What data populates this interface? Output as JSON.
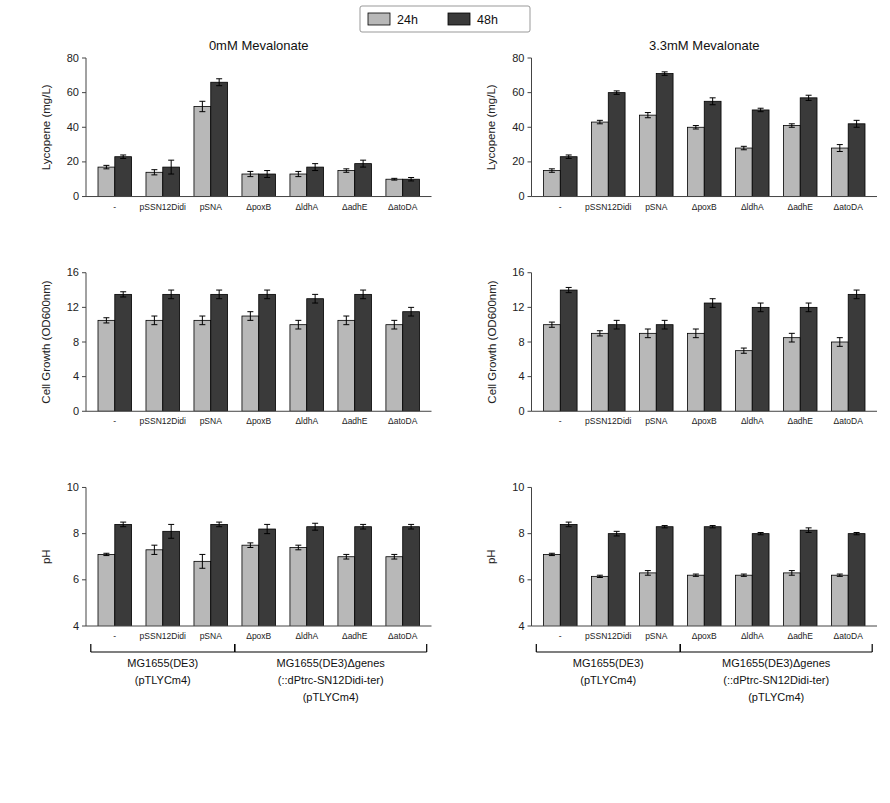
{
  "chart_data": [
    {
      "type": "bar",
      "title": "0mM Mevalonate",
      "y_label": "Lycopene (mg/L)",
      "categories": [
        "-",
        "pSSN12Didi",
        "pSNA",
        "ΔpoxB",
        "ΔldhA",
        "ΔadhE",
        "ΔatoDA"
      ],
      "series": [
        {
          "name": "24h",
          "color": "#b8b8b8",
          "values": [
            17,
            14,
            52,
            13,
            13,
            15,
            10
          ],
          "errors": [
            1.0,
            1.5,
            3.0,
            1.5,
            1.5,
            1.0,
            0.5
          ]
        },
        {
          "name": "48h",
          "color": "#3a3a3a",
          "values": [
            23,
            17,
            66,
            13,
            17,
            19,
            10
          ],
          "errors": [
            1.0,
            4.0,
            2.0,
            2.0,
            2.0,
            2.0,
            1.0
          ]
        }
      ],
      "ylim": [
        0,
        80
      ],
      "yticks": [
        0,
        20,
        40,
        60,
        80
      ],
      "grid": false,
      "legend": "top"
    },
    {
      "type": "bar",
      "title": "3.3mM Mevalonate",
      "y_label": "Lycopene (mg/L)",
      "categories": [
        "-",
        "pSSN12Didi",
        "pSNA",
        "ΔpoxB",
        "ΔldhA",
        "ΔadhE",
        "ΔatoDA"
      ],
      "series": [
        {
          "name": "24h",
          "color": "#b8b8b8",
          "values": [
            15,
            43,
            47,
            40,
            28,
            41,
            28
          ],
          "errors": [
            1.0,
            1.0,
            1.5,
            1.0,
            1.0,
            1.0,
            2.0
          ]
        },
        {
          "name": "48h",
          "color": "#3a3a3a",
          "values": [
            23,
            60,
            71,
            55,
            50,
            57,
            42
          ],
          "errors": [
            1.0,
            1.0,
            1.0,
            2.0,
            1.0,
            1.5,
            2.0
          ]
        }
      ],
      "ylim": [
        0,
        80
      ],
      "yticks": [
        0,
        20,
        40,
        60,
        80
      ],
      "grid": false
    },
    {
      "type": "bar",
      "y_label": "Cell Growth (OD600nm)",
      "categories": [
        "-",
        "pSSN12Didi",
        "pSNA",
        "ΔpoxB",
        "ΔldhA",
        "ΔadhE",
        "ΔatoDA"
      ],
      "series": [
        {
          "name": "24h",
          "color": "#b8b8b8",
          "values": [
            10.5,
            10.5,
            10.5,
            11.0,
            10.0,
            10.5,
            10.0
          ],
          "errors": [
            0.3,
            0.5,
            0.5,
            0.5,
            0.5,
            0.5,
            0.5
          ]
        },
        {
          "name": "48h",
          "color": "#3a3a3a",
          "values": [
            13.5,
            13.5,
            13.5,
            13.5,
            13.0,
            13.5,
            11.5
          ],
          "errors": [
            0.3,
            0.5,
            0.5,
            0.5,
            0.5,
            0.5,
            0.5
          ]
        }
      ],
      "ylim": [
        0,
        16
      ],
      "yticks": [
        0,
        4,
        8,
        12,
        16
      ],
      "grid": false
    },
    {
      "type": "bar",
      "y_label": "Cell Growth (OD600nm)",
      "categories": [
        "-",
        "pSSN12Didi",
        "pSNA",
        "ΔpoxB",
        "ΔldhA",
        "ΔadhE",
        "ΔatoDA"
      ],
      "series": [
        {
          "name": "24h",
          "color": "#b8b8b8",
          "values": [
            10.0,
            9.0,
            9.0,
            9.0,
            7.0,
            8.5,
            8.0
          ],
          "errors": [
            0.3,
            0.3,
            0.5,
            0.5,
            0.3,
            0.5,
            0.5
          ]
        },
        {
          "name": "48h",
          "color": "#3a3a3a",
          "values": [
            14.0,
            10.0,
            10.0,
            12.5,
            12.0,
            12.0,
            13.5
          ],
          "errors": [
            0.3,
            0.5,
            0.5,
            0.5,
            0.5,
            0.5,
            0.5
          ]
        }
      ],
      "ylim": [
        0,
        16
      ],
      "yticks": [
        0,
        4,
        8,
        12,
        16
      ],
      "grid": false
    },
    {
      "type": "bar",
      "y_label": "pH",
      "categories": [
        "-",
        "pSSN12Didi",
        "pSNA",
        "ΔpoxB",
        "ΔldhA",
        "ΔadhE",
        "ΔatoDA"
      ],
      "series": [
        {
          "name": "24h",
          "color": "#b8b8b8",
          "values": [
            7.1,
            7.3,
            6.8,
            7.5,
            7.4,
            7.0,
            7.0
          ],
          "errors": [
            0.05,
            0.2,
            0.3,
            0.1,
            0.1,
            0.1,
            0.1
          ]
        },
        {
          "name": "48h",
          "color": "#3a3a3a",
          "values": [
            8.4,
            8.1,
            8.4,
            8.2,
            8.3,
            8.3,
            8.3
          ],
          "errors": [
            0.1,
            0.3,
            0.1,
            0.2,
            0.15,
            0.1,
            0.1
          ]
        }
      ],
      "ylim": [
        4,
        10
      ],
      "yticks": [
        4,
        6,
        8,
        10
      ],
      "grid": false,
      "annotations": [
        {
          "text": [
            "MG1655(DE3)",
            "(pTLYCm4)"
          ],
          "categories": [
            "-",
            "pSSN12Didi",
            "pSNA"
          ]
        },
        {
          "text": [
            "MG1655(DE3)Δgenes",
            "(::dPtrc-SN12Didi-ter)",
            "(pTLYCm4)"
          ],
          "categories": [
            "ΔpoxB",
            "ΔldhA",
            "ΔadhE",
            "ΔatoDA"
          ]
        }
      ]
    },
    {
      "type": "bar",
      "y_label": "pH",
      "categories": [
        "-",
        "pSSN12Didi",
        "pSNA",
        "ΔpoxB",
        "ΔldhA",
        "ΔadhE",
        "ΔatoDA"
      ],
      "series": [
        {
          "name": "24h",
          "color": "#b8b8b8",
          "values": [
            7.1,
            6.15,
            6.3,
            6.2,
            6.2,
            6.3,
            6.2
          ],
          "errors": [
            0.05,
            0.05,
            0.1,
            0.05,
            0.05,
            0.1,
            0.05
          ]
        },
        {
          "name": "48h",
          "color": "#3a3a3a",
          "values": [
            8.4,
            8.0,
            8.3,
            8.3,
            8.0,
            8.15,
            8.0
          ],
          "errors": [
            0.1,
            0.1,
            0.05,
            0.05,
            0.05,
            0.1,
            0.05
          ]
        }
      ],
      "ylim": [
        4,
        10
      ],
      "yticks": [
        4,
        6,
        8,
        10
      ],
      "grid": false,
      "annotations": [
        {
          "text": [
            "MG1655(DE3)",
            "(pTLYCm4)"
          ],
          "categories": [
            "-",
            "pSSN12Didi",
            "pSNA"
          ]
        },
        {
          "text": [
            "MG1655(DE3)Δgenes",
            "(::dPtrc-SN12Didi-ter)",
            "(pTLYCm4)"
          ],
          "categories": [
            "ΔpoxB",
            "ΔldhA",
            "ΔadhE",
            "ΔatoDA"
          ]
        }
      ]
    }
  ]
}
